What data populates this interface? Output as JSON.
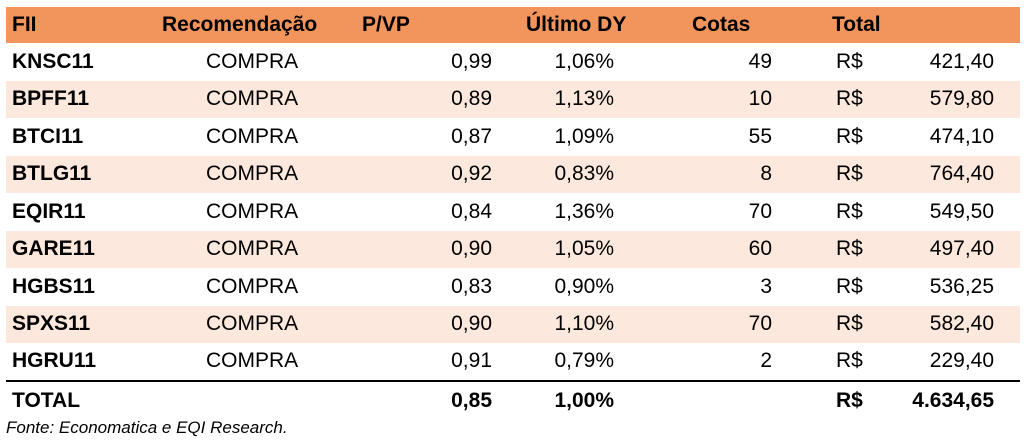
{
  "table": {
    "headers": {
      "fii": "FII",
      "recomendacao": "Recomendação",
      "pvp": "P/VP",
      "ultimo_dy": "Último DY",
      "cotas": "Cotas",
      "total": "Total"
    },
    "rows": [
      {
        "fii": "KNSC11",
        "recomendacao": "COMPRA",
        "pvp": "0,99",
        "dy": "1,06%",
        "cotas": "49",
        "currency": "R$",
        "total": "421,40"
      },
      {
        "fii": "BPFF11",
        "recomendacao": "COMPRA",
        "pvp": "0,89",
        "dy": "1,13%",
        "cotas": "10",
        "currency": "R$",
        "total": "579,80"
      },
      {
        "fii": "BTCI11",
        "recomendacao": "COMPRA",
        "pvp": "0,87",
        "dy": "1,09%",
        "cotas": "55",
        "currency": "R$",
        "total": "474,10"
      },
      {
        "fii": "BTLG11",
        "recomendacao": "COMPRA",
        "pvp": "0,92",
        "dy": "0,83%",
        "cotas": "8",
        "currency": "R$",
        "total": "764,40"
      },
      {
        "fii": "EQIR11",
        "recomendacao": "COMPRA",
        "pvp": "0,84",
        "dy": "1,36%",
        "cotas": "70",
        "currency": "R$",
        "total": "549,50"
      },
      {
        "fii": "GARE11",
        "recomendacao": "COMPRA",
        "pvp": "0,90",
        "dy": "1,05%",
        "cotas": "60",
        "currency": "R$",
        "total": "497,40"
      },
      {
        "fii": "HGBS11",
        "recomendacao": "COMPRA",
        "pvp": "0,83",
        "dy": "0,90%",
        "cotas": "3",
        "currency": "R$",
        "total": "536,25"
      },
      {
        "fii": "SPXS11",
        "recomendacao": "COMPRA",
        "pvp": "0,90",
        "dy": "1,10%",
        "cotas": "70",
        "currency": "R$",
        "total": "582,40"
      },
      {
        "fii": "HGRU11",
        "recomendacao": "COMPRA",
        "pvp": "0,91",
        "dy": "0,79%",
        "cotas": "2",
        "currency": "R$",
        "total": "229,40"
      }
    ],
    "footer": {
      "label": "TOTAL",
      "pvp": "0,85",
      "dy": "1,00%",
      "currency": "R$",
      "total": "4.634,65"
    }
  },
  "source_note": "Fonte: Economatica e EQI Research.",
  "colors": {
    "header_bg": "#f2955d",
    "stripe_bg": "#fce8dc",
    "text": "#000000"
  }
}
